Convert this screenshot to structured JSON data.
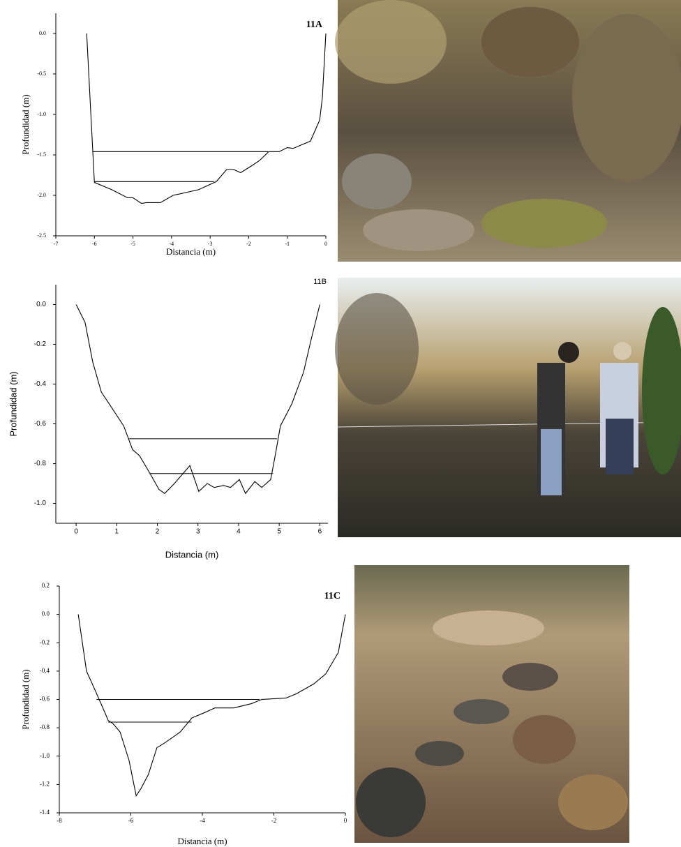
{
  "chart_data": [
    {
      "type": "line",
      "annotation": "11A",
      "ylabel": "Profundidad (m)",
      "xlabel": "Distancia (m)",
      "x": [
        -6.2,
        -6.0,
        -5.55,
        -5.14,
        -5.0,
        -4.78,
        -4.65,
        -4.29,
        -3.96,
        -3.3,
        -2.84,
        -2.57,
        -2.39,
        -2.21,
        -1.94,
        -1.72,
        -1.48,
        -1.21,
        -1.0,
        -0.85,
        -0.4,
        -0.16,
        -0.09,
        0
      ],
      "values": [
        0,
        -1.84,
        -1.93,
        -2.03,
        -2.03,
        -2.1,
        -2.09,
        -2.09,
        -2.0,
        -1.93,
        -1.83,
        -1.68,
        -1.68,
        -1.72,
        -1.64,
        -1.57,
        -1.46,
        -1.46,
        -1.41,
        -1.42,
        -1.33,
        -1.07,
        -0.79,
        0
      ],
      "lines": [
        {
          "x": [
            -6.05,
            -1.5
          ],
          "values": [
            -1.46,
            -1.46
          ]
        },
        {
          "x": [
            -6.0,
            -2.9
          ],
          "values": [
            -1.83,
            -1.83
          ]
        }
      ],
      "color": "#000000",
      "xlim": [
        -7,
        0
      ],
      "ylim": [
        -2.5,
        0.25
      ],
      "xticks": [
        -7,
        -6,
        -5,
        -4,
        -3,
        -2,
        -1,
        0
      ],
      "yticks": [
        {
          "value": 0,
          "label": "0.0"
        },
        -0.5,
        {
          "value": -1,
          "label": "-1.0"
        },
        -1.5,
        {
          "value": -2,
          "label": "-2.0"
        },
        -2.5
      ]
    },
    {
      "type": "line",
      "annotation": "11B",
      "ylabel": "Profundidad (m)",
      "xlabel": "Distancia (m)",
      "x": [
        0,
        0.22,
        0.41,
        0.62,
        0.88,
        1.17,
        1.39,
        1.56,
        1.82,
        2.04,
        2.18,
        2.42,
        2.8,
        3.02,
        3.23,
        3.4,
        3.63,
        3.8,
        4.02,
        4.17,
        4.4,
        4.57,
        4.79,
        4.91,
        5.03,
        5.31,
        5.6,
        5.77,
        6
      ],
      "values": [
        0,
        -0.09,
        -0.29,
        -0.44,
        -0.52,
        -0.61,
        -0.73,
        -0.76,
        -0.85,
        -0.93,
        -0.95,
        -0.9,
        -0.81,
        -0.94,
        -0.9,
        -0.92,
        -0.91,
        -0.92,
        -0.88,
        -0.95,
        -0.89,
        -0.92,
        -0.88,
        -0.75,
        -0.61,
        -0.5,
        -0.34,
        -0.19,
        0
      ],
      "lines": [
        {
          "x": [
            1.3,
            4.95
          ],
          "values": [
            -0.675,
            -0.675
          ]
        },
        {
          "x": [
            1.82,
            4.85
          ],
          "values": [
            -0.85,
            -0.85
          ]
        }
      ],
      "color": "#000000",
      "xlim": [
        -0.5,
        6.2
      ],
      "ylim": [
        -1.1,
        0.1
      ],
      "xticks": [
        0,
        1,
        2,
        3,
        4,
        5,
        6
      ],
      "yticks": [
        {
          "value": 0,
          "label": "0.0"
        },
        -0.2,
        -0.4,
        -0.6,
        -0.8,
        {
          "value": -1,
          "label": "-1.0"
        }
      ]
    },
    {
      "type": "line",
      "annotation": "11C",
      "ylabel": "Profundidad (m)",
      "xlabel": "Distancia (m)",
      "x": [
        -7.47,
        -7.24,
        -6.99,
        -6.73,
        -6.63,
        -6.5,
        -6.3,
        -6.05,
        -5.85,
        -5.72,
        -5.51,
        -5.27,
        -5.07,
        -4.62,
        -4.29,
        -4.0,
        -3.65,
        -3.12,
        -2.63,
        -2.34,
        -1.66,
        -1.37,
        -0.88,
        -0.55,
        -0.2,
        0
      ],
      "values": [
        0,
        -0.4,
        -0.54,
        -0.69,
        -0.75,
        -0.77,
        -0.83,
        -1.03,
        -1.28,
        -1.23,
        -1.13,
        -0.94,
        -0.91,
        -0.83,
        -0.73,
        -0.7,
        -0.66,
        -0.66,
        -0.63,
        -0.6,
        -0.59,
        -0.56,
        -0.49,
        -0.42,
        -0.27,
        0
      ],
      "lines": [
        {
          "x": [
            -6.96,
            -2.4
          ],
          "values": [
            -0.6,
            -0.6
          ]
        },
        {
          "x": [
            -6.63,
            -4.3
          ],
          "values": [
            -0.76,
            -0.76
          ]
        }
      ],
      "color": "#000000",
      "xlim": [
        -8,
        0
      ],
      "ylim": [
        -1.4,
        0.2
      ],
      "xticks": [
        -8,
        -6,
        -4,
        -2,
        0
      ],
      "yticks": [
        0.2,
        {
          "value": 0,
          "label": "0.0"
        },
        -0.2,
        -0.4,
        -0.6,
        -0.8,
        {
          "value": -1,
          "label": "-1.0"
        },
        -1.2,
        -1.4
      ]
    }
  ]
}
